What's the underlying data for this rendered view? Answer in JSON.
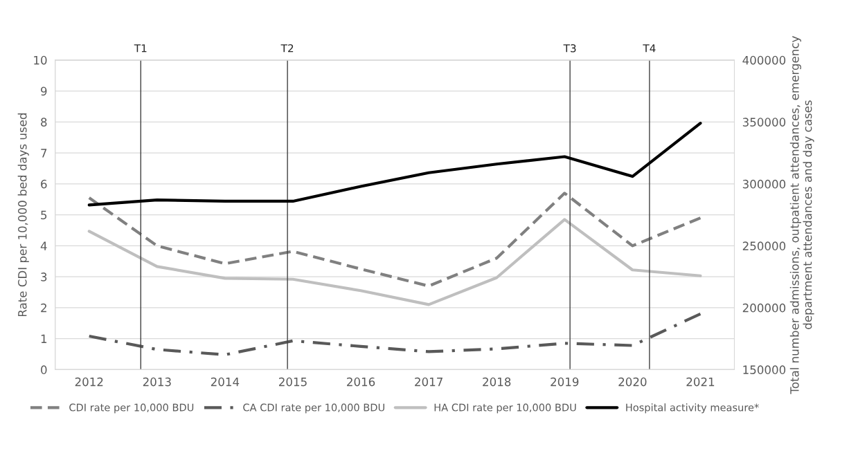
{
  "chart_data": {
    "type": "line",
    "x": [
      2012,
      2013,
      2014,
      2015,
      2016,
      2017,
      2018,
      2019,
      2020,
      2021
    ],
    "xlim": [
      2011.5,
      2021.5
    ],
    "xticks": [
      2012,
      2013,
      2014,
      2015,
      2016,
      2017,
      2018,
      2019,
      2020,
      2021
    ],
    "ylabel": "Rate CDI per 10,000 bed days used",
    "y2label": "Total number admissions, outpatient attendances, emergency department attendances and day cases",
    "ylim": [
      0,
      10
    ],
    "yticks": [
      0,
      1,
      2,
      3,
      4,
      5,
      6,
      7,
      8,
      9,
      10
    ],
    "y2lim": [
      150000,
      400000
    ],
    "y2ticks": [
      150000,
      200000,
      250000,
      300000,
      350000,
      400000
    ],
    "grid": "y",
    "legend": "bottom",
    "series": [
      {
        "name": "CDI rate per 10,000 BDU",
        "color": "#808080",
        "line_style": "dashed",
        "values": [
          5.55,
          4.0,
          3.42,
          3.82,
          3.25,
          2.7,
          3.6,
          5.7,
          4.0,
          4.9
        ]
      },
      {
        "name": "CA CDI rate per 10,000 BDU",
        "color": "#595959",
        "line_style": "dashdot",
        "values": [
          1.08,
          0.65,
          0.48,
          0.93,
          0.75,
          0.58,
          0.67,
          0.85,
          0.78,
          1.8
        ]
      },
      {
        "name": "HA CDI rate per 10,000 BDU",
        "color": "#bfbfbf",
        "line_style": "solid",
        "values": [
          4.47,
          3.33,
          2.95,
          2.92,
          2.55,
          2.1,
          2.97,
          4.85,
          3.22,
          3.03
        ]
      },
      {
        "name": "Hospital activity measure*",
        "color": "#000000",
        "line_style": "solid",
        "axis": "y2",
        "values": [
          283000,
          287000,
          286000,
          286000,
          298000,
          309000,
          316000,
          322000,
          306000,
          349000
        ]
      }
    ],
    "ref_lines": [
      {
        "axis": "x",
        "value": 2012.76,
        "label": "T1",
        "color": "#404040"
      },
      {
        "axis": "x",
        "value": 2014.92,
        "label": "T2",
        "color": "#404040"
      },
      {
        "axis": "x",
        "value": 2019.08,
        "label": "T3",
        "color": "#404040"
      },
      {
        "axis": "x",
        "value": 2020.25,
        "label": "T4",
        "color": "#404040"
      }
    ]
  }
}
